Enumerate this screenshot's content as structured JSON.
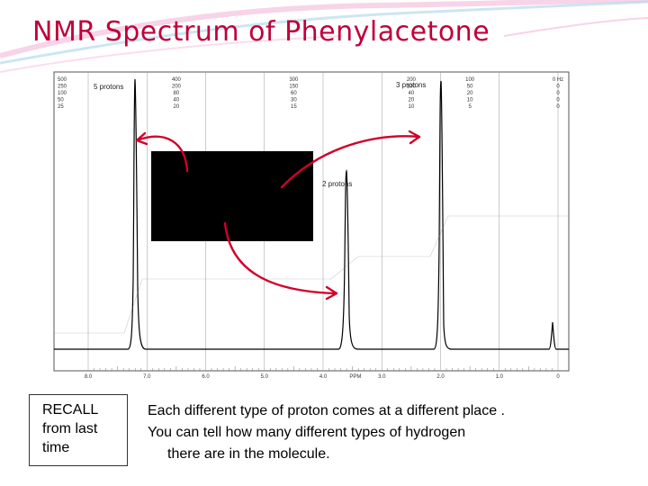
{
  "title": "NMR Spectrum of Phenylacetone",
  "spectrum": {
    "top_scale": {
      "columns": [
        {
          "values": [
            "500",
            "250",
            "100",
            "50",
            "25"
          ]
        },
        {
          "values": [
            "400",
            "200",
            "80",
            "40",
            "20"
          ]
        },
        {
          "values": [
            "300",
            "150",
            "60",
            "30",
            "15"
          ]
        },
        {
          "values": [
            "200",
            "100",
            "40",
            "20",
            "10"
          ]
        },
        {
          "values": [
            "100",
            "50",
            "20",
            "10",
            "5"
          ]
        },
        {
          "values": [
            "0 Hz",
            "0",
            "0",
            "0",
            "0"
          ]
        }
      ]
    },
    "ppm_ticks": [
      "8.0",
      "7.0",
      "6.0",
      "5.0",
      "4.0",
      "3.0",
      "2.0",
      "1.0",
      "0"
    ],
    "ppm_label": "PPM",
    "peak_labels": {
      "aromatic": "5 protons",
      "methyl": "3 protons",
      "methylene": "2 protons"
    },
    "colors": {
      "arrow": "#d1002a",
      "overlay": "#000000",
      "grid": "#7a7a7a",
      "trace": "#000000"
    }
  },
  "recall": {
    "line1": "RECALL",
    "line2": "from last",
    "line3": "time"
  },
  "caption": {
    "line1": "Each different type of proton comes at a different place .",
    "line2": "You can tell how many different types of hydrogen",
    "line3": "there are in the molecule."
  }
}
